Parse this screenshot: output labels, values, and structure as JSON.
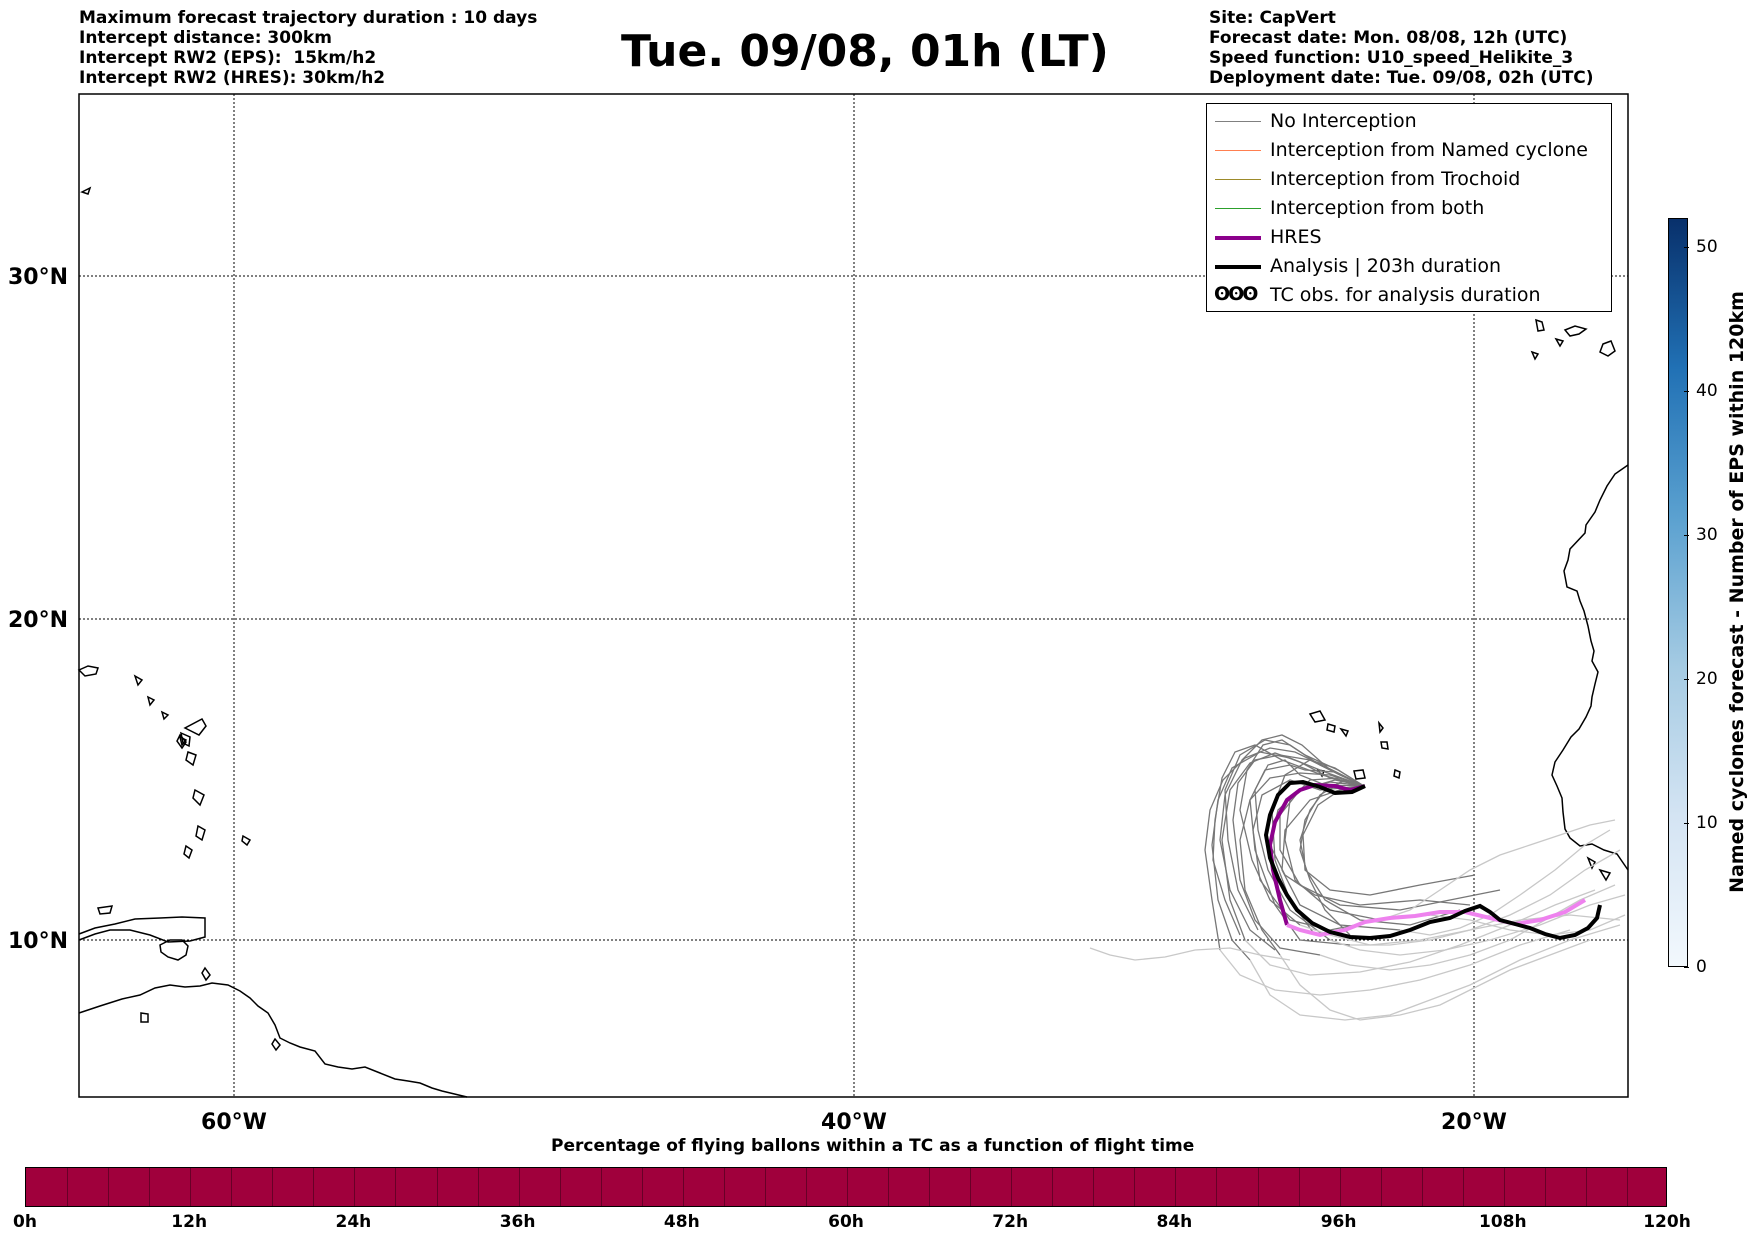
{
  "header": {
    "left_lines": [
      "Maximum forecast trajectory duration : 10 days",
      "Intercept distance: 300km",
      "Intercept RW2 (EPS):  15km/h2",
      "Intercept RW2 (HRES): 30km/h2"
    ],
    "title": "Tue. 09/08, 01h (LT)",
    "right_lines": [
      "Site: CapVert",
      "Forecast date: Mon. 08/08, 12h (UTC)",
      "Speed function: U10_speed_Helikite_3",
      "Deployment date: Tue. 09/08, 02h (UTC)"
    ]
  },
  "map": {
    "lat_labels": [
      "30°N",
      "20°N",
      "10°N"
    ],
    "lon_labels": [
      "60°W",
      "40°W",
      "20°W"
    ]
  },
  "legend": {
    "items": [
      {
        "label": "No Interception",
        "color": "#808080",
        "style": "thin"
      },
      {
        "label": "Interception from Named cyclone",
        "color": "#ff7f50",
        "style": "thin"
      },
      {
        "label": "Interception from Trochoid",
        "color": "#9c8a2a",
        "style": "thin"
      },
      {
        "label": "Interception from both",
        "color": "#2ca02c",
        "style": "thin"
      },
      {
        "label": "HRES",
        "color": "#8b008b",
        "style": "thick"
      },
      {
        "label": "Analysis | 203h duration",
        "color": "#000000",
        "style": "thick"
      },
      {
        "label": "TC obs. for analysis duration",
        "color": "#000000",
        "style": "symbol",
        "symbol": "ʘʘʘ"
      }
    ]
  },
  "bottom_bar": {
    "title": "Percentage of flying ballons within a TC as a function of flight time",
    "color": "#a0003c",
    "ticks": [
      "0h",
      "12h",
      "24h",
      "36h",
      "48h",
      "60h",
      "72h",
      "84h",
      "96h",
      "108h",
      "120h"
    ]
  },
  "colorbar": {
    "label": "Named cyclones forecast - Number of EPS within 120km",
    "ticks": [
      "0",
      "10",
      "20",
      "30",
      "40",
      "50"
    ],
    "max": 52
  }
}
